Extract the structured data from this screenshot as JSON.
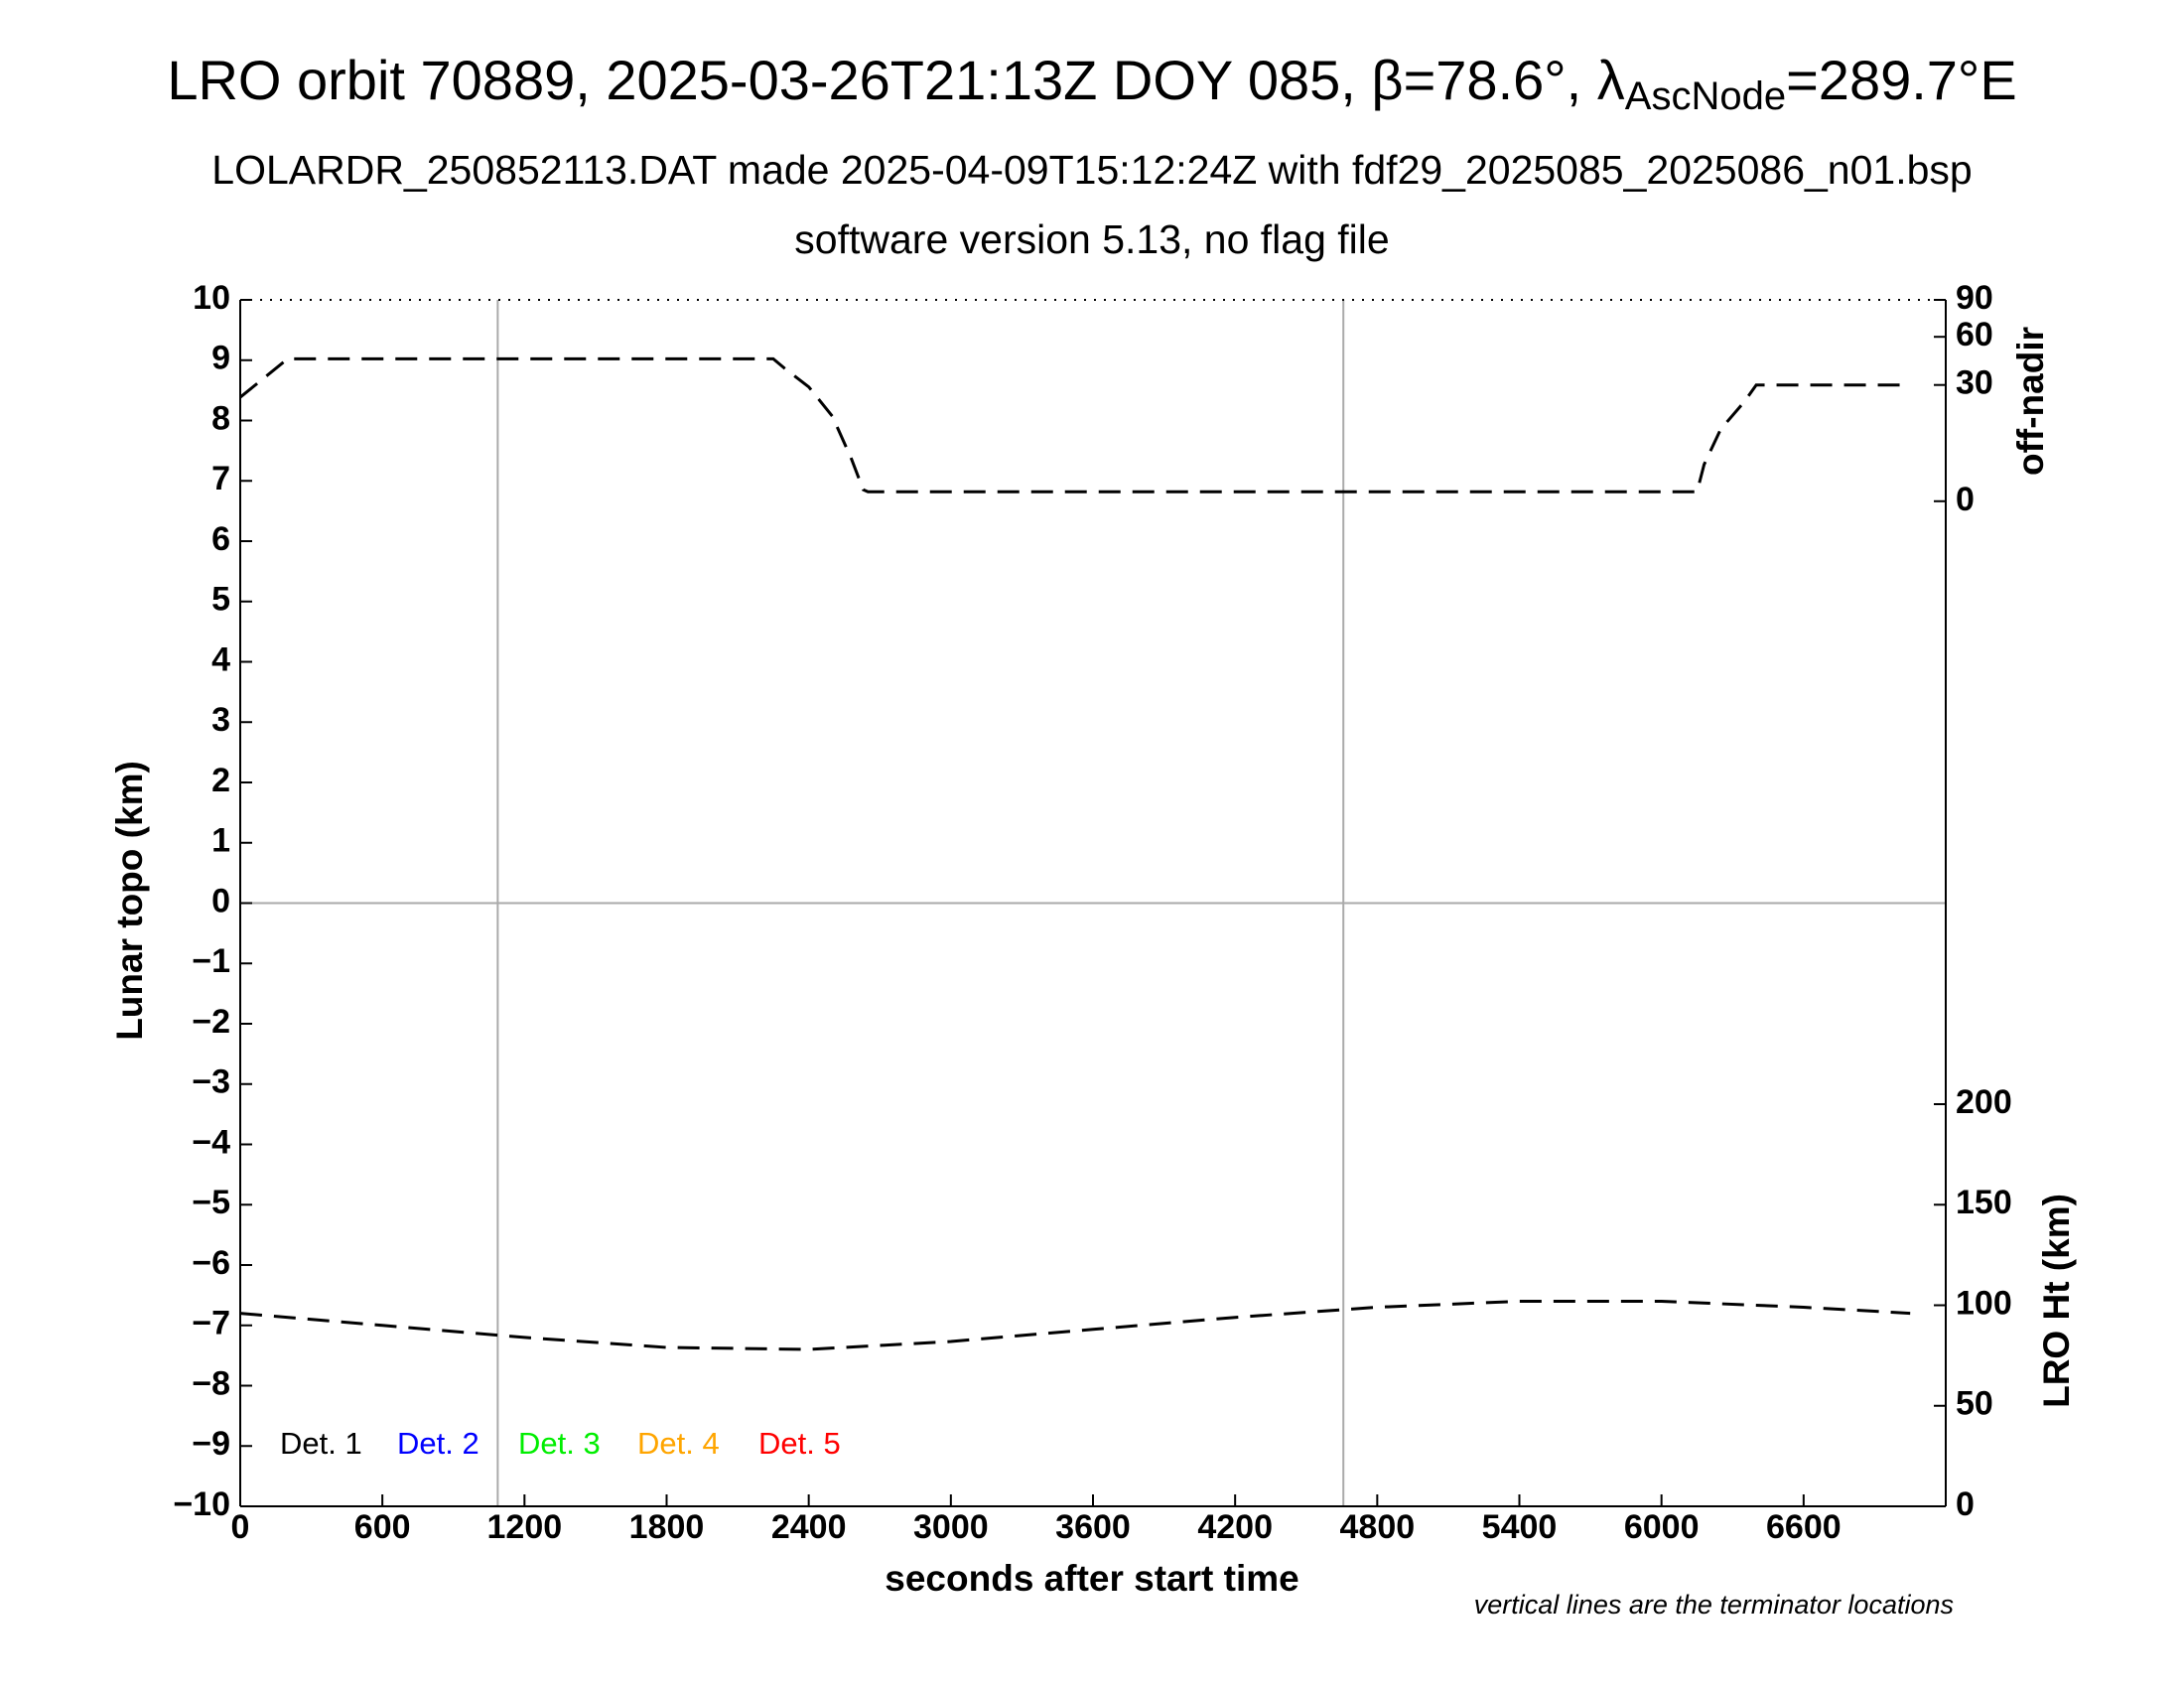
{
  "chart_data": {
    "type": "line",
    "title": {
      "main": "LRO orbit 70889, 2025-03-26T21:13Z DOY 085, β=78.6°, λ",
      "sub": "AscNode",
      "end": "=289.7°E"
    },
    "subtitle": "LOLARDR_250852113.DAT made 2025-04-09T15:12:24Z with fdf29_2025085_2025086_n01.bsp",
    "subtitle2": "software version 5.13, no flag file",
    "xlabel": "seconds after start time",
    "ylabel": "Lunar topo (km)",
    "y2label": "LRO Ht (km)",
    "y3label": "off-nadir",
    "note": "vertical lines are the terminator locations",
    "xlim": [
      0,
      7200
    ],
    "xticks": [
      0,
      600,
      1200,
      1800,
      2400,
      3000,
      3600,
      4200,
      4800,
      5400,
      6000,
      6600
    ],
    "ylim": [
      -10,
      10
    ],
    "yticks": [
      {
        "value": -10,
        "label": "−10"
      },
      {
        "value": -9,
        "label": "−9"
      },
      {
        "value": -8,
        "label": "−8"
      },
      {
        "value": -7,
        "label": "−7"
      },
      {
        "value": -6,
        "label": "−6"
      },
      {
        "value": -5,
        "label": "−5"
      },
      {
        "value": -4,
        "label": "−4"
      },
      {
        "value": -3,
        "label": "−3"
      },
      {
        "value": -2,
        "label": "−2"
      },
      {
        "value": -1,
        "label": "−1"
      },
      0,
      1,
      2,
      3,
      4,
      5,
      6,
      7,
      8,
      9,
      10
    ],
    "y2lim": [
      0,
      600
    ],
    "y2ticks": [
      0,
      50,
      100,
      150,
      200
    ],
    "y3lim": [
      0,
      90
    ],
    "y3ticks": [
      0,
      30,
      60,
      90
    ],
    "y3scale": "sqrt",
    "terminators": [
      1087,
      4657
    ],
    "series": [
      {
        "axis": "y3",
        "color": "#000000",
        "x": [
          0,
          200,
          2250,
          2300,
          2400,
          2500,
          2580,
          2630,
          2650,
          6150,
          6180,
          6250,
          6350,
          6400,
          7050
        ],
        "values": [
          24,
          45,
          45,
          39,
          29,
          16,
          4,
          0.3,
          0.2,
          0.2,
          3,
          11.5,
          22,
          30,
          30
        ]
      },
      {
        "axis": "y2",
        "color": "#000000",
        "x": [
          0,
          600,
          1200,
          1800,
          2400,
          3000,
          3600,
          4200,
          4800,
          5400,
          6000,
          6600,
          7050
        ],
        "values": [
          96,
          90,
          84,
          79,
          78,
          82,
          88,
          94,
          99,
          102,
          102,
          99,
          96
        ]
      }
    ],
    "legend": [
      {
        "name": "Det. 1",
        "color": "#000000"
      },
      {
        "name": "Det. 2",
        "color": "#0000ff"
      },
      {
        "name": "Det. 3",
        "color": "#00ee00"
      },
      {
        "name": "Det. 4",
        "color": "#ffa500"
      },
      {
        "name": "Det. 5",
        "color": "#ff0000"
      }
    ]
  }
}
